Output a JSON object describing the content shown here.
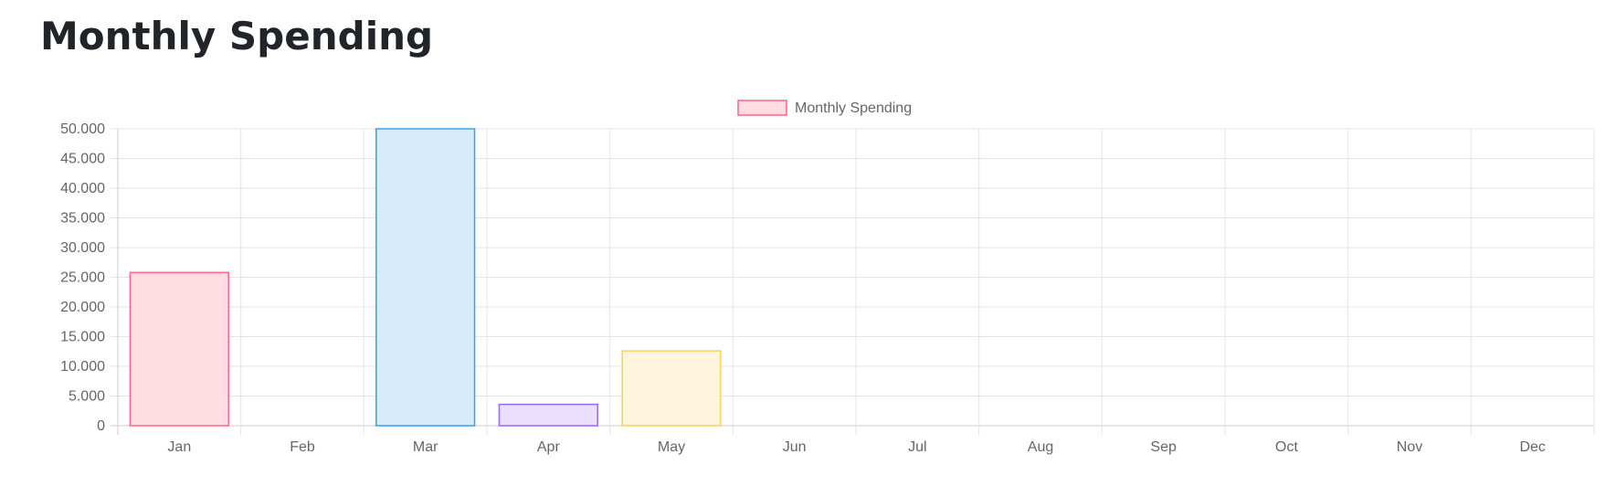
{
  "page": {
    "title": "Monthly Spending"
  },
  "chart_data": {
    "type": "bar",
    "legend_position": "top-center",
    "grid": true,
    "categories": [
      "Jan",
      "Feb",
      "Mar",
      "Apr",
      "May",
      "Jun",
      "Jul",
      "Aug",
      "Sep",
      "Oct",
      "Nov",
      "Dec"
    ],
    "series": [
      {
        "name": "Monthly Spending",
        "values": [
          25800,
          0,
          50000,
          3600,
          12600,
          0,
          0,
          0,
          0,
          0,
          0,
          0
        ]
      }
    ],
    "ylim": [
      0,
      50000
    ],
    "y_ticks": [
      "0",
      "5.000",
      "10.000",
      "15.000",
      "20.000",
      "25.000",
      "30.000",
      "35.000",
      "40.000",
      "45.000",
      "50.000"
    ],
    "bar_fill_colors": [
      "#ffdde3",
      "#d7ebf9",
      "#d6ecfa",
      "#ebdfff",
      "#fff4dc",
      "#dff3f3",
      "#eeeff1",
      "#ffdde3",
      "#d7ebf9",
      "#fff4dc",
      "#dff3f3",
      "#ebdfff"
    ],
    "bar_border_colors": [
      "#ff6384",
      "#36a2eb",
      "#36a2eb",
      "#9966ff",
      "#ffce56",
      "#4bc0c0",
      "#c9cbcf",
      "#ff6384",
      "#36a2eb",
      "#ffce56",
      "#4bc0c0",
      "#9966ff"
    ],
    "legend_fill_color": "#ffdde3",
    "legend_border_color": "#ff6384",
    "grid_color": "#e5e5e5",
    "axis_color": "#cccccc"
  }
}
